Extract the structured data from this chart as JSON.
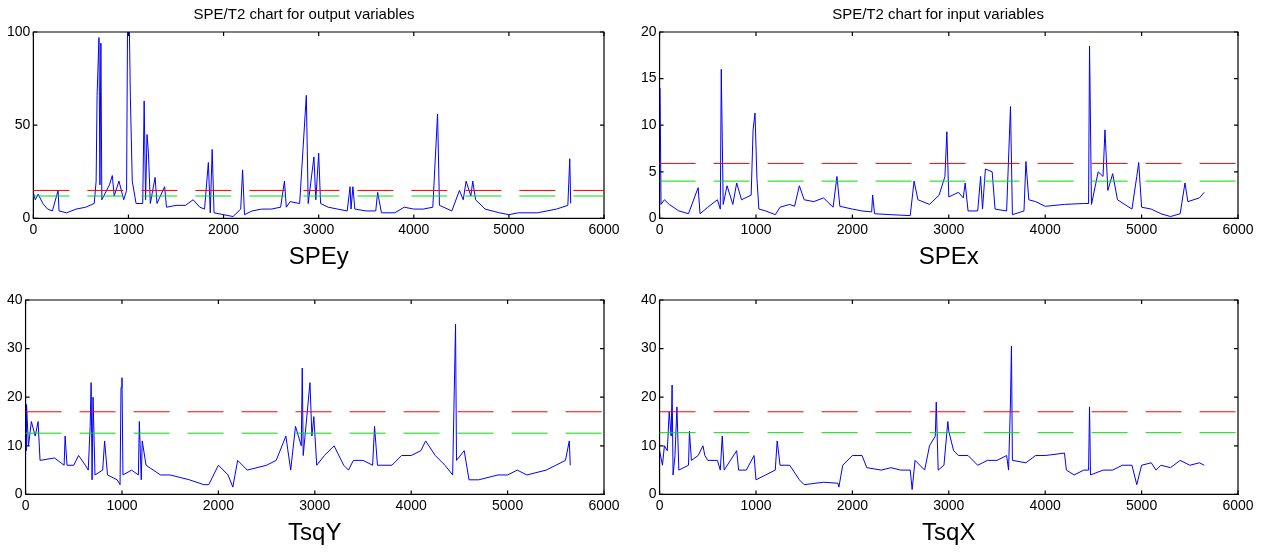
{
  "chart_data": [
    {
      "type": "line",
      "title": "SPE/T2 chart for output variables",
      "xlabel": "SPEy",
      "xlim": [
        0,
        6000
      ],
      "xticks": [
        0,
        1000,
        2000,
        3000,
        4000,
        5000,
        6000
      ],
      "ylim": [
        0,
        100
      ],
      "yticks": [
        0,
        50,
        100
      ],
      "grid": false,
      "legend": false,
      "marker": "none",
      "series": [
        {
          "color": "#0000ff",
          "x": [
            0,
            20,
            50,
            100,
            150,
            200,
            260,
            270,
            350,
            450,
            550,
            640,
            660,
            670,
            690,
            700,
            710,
            720,
            800,
            830,
            850,
            900,
            950,
            980,
            990,
            1010,
            1020,
            1040,
            1080,
            1150,
            1165,
            1180,
            1195,
            1210,
            1230,
            1280,
            1300,
            1380,
            1400,
            1500,
            1600,
            1680,
            1750,
            1800,
            1840,
            1860,
            1880,
            1900,
            2000,
            2100,
            2180,
            2200,
            2220,
            2300,
            2400,
            2500,
            2600,
            2640,
            2660,
            2700,
            2800,
            2870,
            2890,
            2950,
            2970,
            3000,
            3020,
            3100,
            3200,
            3300,
            3330,
            3340,
            3360,
            3380,
            3500,
            3600,
            3620,
            3660,
            3800,
            3900,
            4000,
            4100,
            4200,
            4250,
            4270,
            4400,
            4480,
            4520,
            4550,
            4600,
            4620,
            4650,
            4750,
            4900,
            5000,
            5100,
            5300,
            5500,
            5620,
            5640,
            5650
          ],
          "values": [
            14,
            10,
            13,
            8,
            5,
            4,
            15,
            4,
            3,
            5,
            6,
            8,
            20,
            66,
            97,
            18,
            94,
            10,
            18,
            23,
            12,
            20,
            10,
            15,
            100,
            100,
            65,
            20,
            8,
            8,
            63,
            10,
            45,
            35,
            8,
            22,
            8,
            17,
            6,
            7,
            7,
            10,
            6,
            5,
            30,
            3,
            37,
            3,
            2,
            1,
            5,
            26,
            2,
            4,
            5,
            5,
            6,
            20,
            6,
            9,
            8,
            66,
            8,
            33,
            10,
            35,
            8,
            6,
            5,
            4,
            17,
            5,
            17,
            5,
            4,
            4,
            14,
            3,
            3,
            6,
            5,
            5,
            6,
            56,
            7,
            4,
            15,
            10,
            20,
            12,
            20,
            10,
            5,
            3,
            2,
            3,
            3,
            5,
            7,
            32,
            8
          ]
        }
      ],
      "ref_lines": [
        {
          "axis": "y",
          "value": 15,
          "color": "#ff0000",
          "line_style": "dashed"
        },
        {
          "axis": "y",
          "value": 12,
          "color": "#00e000",
          "line_style": "dashed"
        }
      ]
    },
    {
      "type": "line",
      "title": "SPE/T2 chart for input variables",
      "xlabel": "SPEx",
      "xlim": [
        0,
        6000
      ],
      "xticks": [
        0,
        1000,
        2000,
        3000,
        4000,
        5000,
        6000
      ],
      "ylim": [
        0,
        20
      ],
      "yticks": [
        0,
        5,
        10,
        15,
        20
      ],
      "grid": false,
      "legend": false,
      "marker": "none",
      "series": [
        {
          "color": "#0000ff",
          "x": [
            5,
            15,
            50,
            100,
            200,
            300,
            400,
            420,
            500,
            600,
            630,
            640,
            660,
            700,
            760,
            800,
            850,
            950,
            970,
            990,
            1010,
            1030,
            1100,
            1200,
            1250,
            1350,
            1400,
            1450,
            1500,
            1600,
            1700,
            1800,
            1840,
            1870,
            2000,
            2100,
            2200,
            2210,
            2230,
            2400,
            2600,
            2640,
            2680,
            2800,
            2900,
            2960,
            2980,
            3000,
            3100,
            3150,
            3170,
            3200,
            3300,
            3330,
            3350,
            3380,
            3450,
            3480,
            3600,
            3640,
            3660,
            3780,
            3800,
            3830,
            3900,
            4000,
            4200,
            4400,
            4450,
            4460,
            4480,
            4550,
            4600,
            4620,
            4650,
            4700,
            4750,
            4900,
            4950,
            4970,
            5000,
            5100,
            5200,
            5300,
            5400,
            5450,
            5480,
            5600,
            5650
          ],
          "values": [
            14,
            1.5,
            2,
            1.5,
            0.8,
            0.5,
            3.3,
            0.5,
            1.2,
            2,
            1,
            16,
            1.5,
            3.5,
            1.5,
            3.8,
            2,
            2.5,
            9.5,
            11.3,
            4.3,
            1,
            0.8,
            0.4,
            1.2,
            1.5,
            1.3,
            3.5,
            2,
            1.8,
            2.2,
            1.2,
            4.5,
            1.3,
            1,
            0.8,
            0.7,
            2.5,
            0.5,
            0.4,
            0.3,
            4,
            2,
            1.5,
            2.5,
            4.5,
            9.3,
            2.3,
            2.8,
            2.2,
            3.8,
            0.8,
            0.8,
            4.5,
            1,
            5.3,
            5,
            1,
            0.8,
            12,
            0.4,
            0.8,
            6.1,
            2,
            1.8,
            1.3,
            1.5,
            1.6,
            1.6,
            18.5,
            1.5,
            5,
            4.5,
            9.5,
            3,
            4.8,
            2,
            1,
            4.5,
            6,
            1.2,
            1,
            0.5,
            0.2,
            0.5,
            3.8,
            1.8,
            2.2,
            2.8
          ]
        }
      ],
      "ref_lines": [
        {
          "axis": "y",
          "value": 5.9,
          "color": "#ff0000",
          "line_style": "dashed"
        },
        {
          "axis": "y",
          "value": 4,
          "color": "#00e000",
          "line_style": "dashed"
        }
      ]
    },
    {
      "type": "line",
      "xlabel": "TsqY",
      "xlim": [
        0,
        6000
      ],
      "xticks": [
        0,
        1000,
        2000,
        3000,
        4000,
        5000,
        6000
      ],
      "ylim": [
        0,
        40
      ],
      "yticks": [
        0,
        10,
        20,
        30,
        40
      ],
      "grid": false,
      "legend": false,
      "marker": "none",
      "series": [
        {
          "color": "#0000ff",
          "x": [
            5,
            10,
            30,
            60,
            100,
            130,
            150,
            300,
            400,
            410,
            430,
            500,
            550,
            620,
            650,
            670,
            680,
            690,
            700,
            720,
            800,
            820,
            850,
            950,
            980,
            990,
            1000,
            1010,
            1100,
            1170,
            1180,
            1200,
            1210,
            1250,
            1400,
            1500,
            1700,
            1850,
            1900,
            2000,
            2100,
            2150,
            2200,
            2300,
            2500,
            2600,
            2700,
            2750,
            2800,
            2860,
            2870,
            2880,
            2950,
            2970,
            2990,
            3020,
            3100,
            3200,
            3300,
            3350,
            3400,
            3500,
            3600,
            3620,
            3650,
            3800,
            3900,
            4000,
            4100,
            4150,
            4250,
            4350,
            4430,
            4460,
            4470,
            4550,
            4600,
            4700,
            4900,
            5000,
            5100,
            5200,
            5400,
            5500,
            5600,
            5640,
            5650
          ],
          "values": [
            9,
            18.5,
            10,
            15,
            12,
            15,
            7,
            7.5,
            6,
            12,
            6,
            6,
            8,
            6,
            5,
            14,
            23,
            3,
            20,
            4,
            5,
            11,
            4,
            3,
            2,
            22,
            24,
            4,
            5,
            4,
            15,
            3,
            11,
            6,
            4,
            4,
            3,
            2,
            2,
            6,
            4,
            1.5,
            7,
            5,
            6,
            7,
            12,
            5,
            14,
            10,
            26,
            8,
            23,
            12,
            16,
            6,
            8,
            10,
            6,
            5,
            7,
            7,
            6,
            14,
            6,
            6,
            8,
            8,
            9,
            11,
            8,
            6,
            4,
            35,
            7,
            9,
            3,
            3,
            4,
            4,
            5,
            4,
            5,
            6,
            7,
            11,
            6
          ]
        }
      ],
      "ref_lines": [
        {
          "axis": "y",
          "value": 17,
          "color": "#ff0000",
          "line_style": "dashed"
        },
        {
          "axis": "y",
          "value": 12.6,
          "color": "#00e000",
          "line_style": "dashed"
        }
      ]
    },
    {
      "type": "line",
      "xlabel": "TsqX",
      "xlim": [
        0,
        6000
      ],
      "xticks": [
        0,
        1000,
        2000,
        3000,
        4000,
        5000,
        6000
      ],
      "ylim": [
        0,
        40
      ],
      "yticks": [
        0,
        10,
        20,
        30,
        40
      ],
      "grid": false,
      "legend": false,
      "marker": "none",
      "series": [
        {
          "color": "#0000ff",
          "x": [
            0,
            30,
            50,
            80,
            100,
            120,
            130,
            140,
            160,
            180,
            200,
            300,
            310,
            330,
            400,
            450,
            470,
            500,
            600,
            630,
            650,
            670,
            800,
            820,
            900,
            980,
            1000,
            1100,
            1200,
            1220,
            1250,
            1350,
            1450,
            1500,
            1700,
            1850,
            1860,
            1900,
            2000,
            2100,
            2150,
            2300,
            2400,
            2500,
            2600,
            2620,
            2650,
            2750,
            2800,
            2860,
            2870,
            2890,
            2950,
            2990,
            3000,
            3050,
            3100,
            3200,
            3300,
            3400,
            3500,
            3600,
            3620,
            3640,
            3650,
            3660,
            3800,
            3900,
            4000,
            4200,
            4220,
            4300,
            4400,
            4450,
            4460,
            4470,
            4600,
            4700,
            4800,
            4900,
            4950,
            5000,
            5100,
            5150,
            5200,
            5300,
            5400,
            5500,
            5600,
            5650
          ],
          "values": [
            9,
            6,
            10,
            9,
            17,
            12,
            22.5,
            4,
            8,
            18,
            5,
            6,
            13,
            7,
            8,
            10,
            8,
            7,
            7,
            5,
            12,
            5,
            9,
            5,
            5,
            8,
            3,
            4,
            5,
            11,
            6,
            6,
            3,
            2,
            2.5,
            2.3,
            1.5,
            6,
            8,
            8,
            5.5,
            5,
            5.5,
            5,
            5,
            1,
            7,
            5,
            10,
            12,
            19,
            5,
            6,
            15,
            13,
            9,
            8,
            8,
            6,
            7,
            7,
            8,
            5,
            19,
            30.5,
            7,
            6.5,
            8,
            8,
            8.5,
            5,
            4,
            5,
            5,
            18,
            4,
            5,
            5,
            6,
            6,
            2,
            6,
            6.5,
            5,
            6,
            5.5,
            7,
            6,
            6.5,
            6
          ]
        }
      ],
      "ref_lines": [
        {
          "axis": "y",
          "value": 17,
          "color": "#ff0000",
          "line_style": "dashed"
        },
        {
          "axis": "y",
          "value": 12.7,
          "color": "#00e000",
          "line_style": "dashed"
        }
      ]
    }
  ]
}
